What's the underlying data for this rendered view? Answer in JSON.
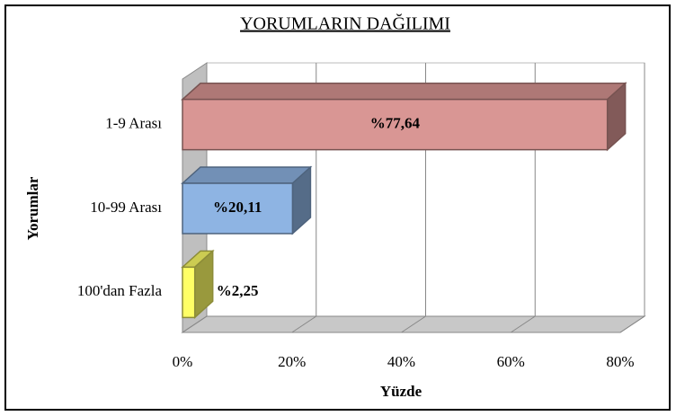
{
  "chart_data": {
    "type": "bar3d_horizontal",
    "title": "YORUMLARIN DAĞILIMI",
    "x_label": "Yüzde",
    "y_label": "Yorumlar",
    "categories": [
      "1-9 Arası",
      "10-99 Arası",
      "100'dan Fazla"
    ],
    "values": [
      77.64,
      20.11,
      2.25
    ],
    "value_labels": [
      "%77,64",
      "%20,11",
      "%2,25"
    ],
    "colors": [
      "#d99694",
      "#8eb4e3",
      "#ffff66"
    ],
    "xlim": [
      0,
      80
    ],
    "xticks": [
      {
        "value": 0,
        "label": "0%"
      },
      {
        "value": 20,
        "label": "20%"
      },
      {
        "value": 40,
        "label": "40%"
      },
      {
        "value": 60,
        "label": "60%"
      },
      {
        "value": 80,
        "label": "80%"
      }
    ],
    "grid": true
  }
}
